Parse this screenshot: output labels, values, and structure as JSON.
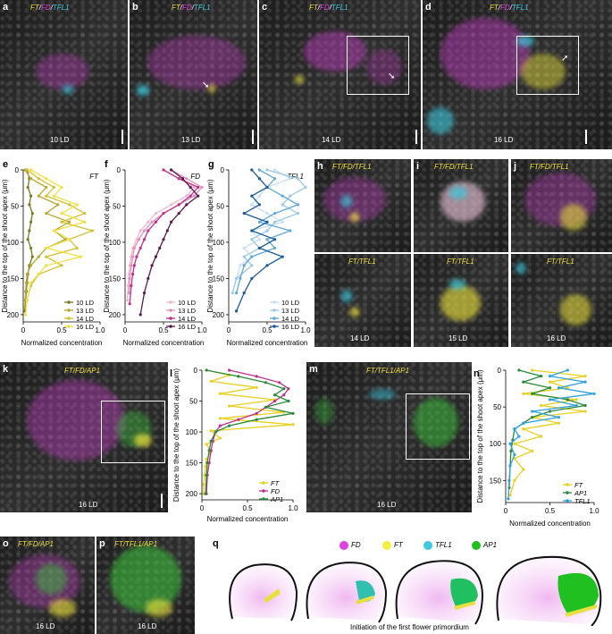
{
  "panels_top": [
    {
      "letter": "a",
      "title": [
        "FT",
        "FD",
        "TFL1"
      ],
      "ld": "10 LD"
    },
    {
      "letter": "b",
      "title": [
        "FT",
        "FD",
        "TFL1"
      ],
      "ld": "13 LD"
    },
    {
      "letter": "c",
      "title": [
        "FT",
        "FD",
        "TFL1"
      ],
      "ld": "14 LD"
    },
    {
      "letter": "d",
      "title": [
        "FT",
        "FD",
        "TFL1"
      ],
      "ld": "16 LD"
    }
  ],
  "panels_h": {
    "h": {
      "letter": "h",
      "title": "FT/FD/TFL1",
      "title2": "FT/TFL1",
      "ld": "14 LD"
    },
    "i": {
      "letter": "i",
      "title": "FT/FD/TFL1",
      "title2": "FT/TFL1",
      "ld": "15 LD"
    },
    "j": {
      "letter": "j",
      "title": "FT/FD/TFL1",
      "title2": "FT/TFL1",
      "ld": "16 LD"
    }
  },
  "panel_k": {
    "letter": "k",
    "title": "FT/FD/AP1",
    "ld": "16 LD"
  },
  "panel_m": {
    "letter": "m",
    "title": "FT/TFL1/AP1",
    "ld": "16 LD"
  },
  "panel_o": {
    "letter": "o",
    "title": "FT/FD/AP1",
    "ld": "16 LD"
  },
  "panel_p": {
    "letter": "p",
    "title": "FT/TFL1/AP1",
    "ld": "16 LD"
  },
  "panel_q": {
    "letter": "q",
    "legend": [
      {
        "label": "FD",
        "color": "#e040e0"
      },
      {
        "label": "FT",
        "color": "#f0f040"
      },
      {
        "label": "TFL1",
        "color": "#40c8e0"
      },
      {
        "label": "AP1",
        "color": "#20c020"
      }
    ],
    "caption": "Initiation of the first flower primordium"
  },
  "colors": {
    "FT": "#e8d020",
    "FD": "#c0308a",
    "AP1": "#2a8a3a",
    "TFL1": "#30a0e0",
    "LD10": "#7a7a20",
    "LD13": "#c8b830",
    "LD14": "#d4c030",
    "LD16": "#f0e040"
  },
  "axis_texts": {
    "ylabel": "Distance to the top of the shoot apex (μm)",
    "xlabel": "Normalized concentration"
  },
  "chart_data": [
    {
      "id": "e",
      "type": "line",
      "title": "FT",
      "xlabel": "Normalized concentration",
      "ylabel": "Distance to the top of the shoot apex (μm)",
      "xlim": [
        0,
        1
      ],
      "ylim": [
        0,
        210
      ],
      "y_inverted": true,
      "series": [
        {
          "name": "10 LD",
          "color": "#7a7a20",
          "x": [
            0.05,
            0.08,
            0.06,
            0.1,
            0.08,
            0.12,
            0.1,
            0.08,
            0.06,
            0.1,
            0.12,
            0.08,
            0.06,
            0.05,
            0.04,
            0.03,
            0.02
          ],
          "y": [
            0,
            12,
            24,
            36,
            48,
            60,
            72,
            84,
            96,
            108,
            120,
            132,
            144,
            156,
            168,
            180,
            195
          ]
        },
        {
          "name": "13 LD",
          "color": "#b8a830",
          "x": [
            0.02,
            0.1,
            0.3,
            0.2,
            0.45,
            0.3,
            0.6,
            0.4,
            0.55,
            0.3,
            0.2,
            0.1,
            0.05,
            0.04,
            0.03,
            0.02
          ],
          "y": [
            0,
            12,
            24,
            36,
            48,
            60,
            72,
            84,
            96,
            108,
            120,
            132,
            144,
            156,
            168,
            190
          ]
        },
        {
          "name": "14 LD",
          "color": "#d4c030",
          "x": [
            0.05,
            0.2,
            0.4,
            0.3,
            0.6,
            0.8,
            0.5,
            0.9,
            0.6,
            0.7,
            0.3,
            0.5,
            0.2,
            0.1,
            0.05
          ],
          "y": [
            0,
            12,
            24,
            36,
            48,
            60,
            72,
            84,
            96,
            108,
            120,
            132,
            144,
            160,
            180
          ]
        },
        {
          "name": "16 LD",
          "color": "#f0e040",
          "x": [
            0.1,
            0.3,
            0.5,
            0.4,
            0.7,
            0.5,
            0.8,
            0.4,
            0.6,
            0.3,
            0.75,
            0.3,
            0.2,
            0.1,
            0.05,
            0.03
          ],
          "y": [
            0,
            12,
            24,
            36,
            48,
            60,
            72,
            84,
            96,
            108,
            120,
            132,
            144,
            156,
            180,
            200
          ]
        }
      ]
    },
    {
      "id": "f",
      "type": "line",
      "title": "FD",
      "xlabel": "Normalized concentration",
      "ylabel": "Distance to the top of the shoot apex (μm)",
      "xlim": [
        0,
        1
      ],
      "ylim": [
        0,
        210
      ],
      "y_inverted": true,
      "series": [
        {
          "name": "10 LD",
          "color": "#f0b8cc",
          "x": [
            0.5,
            0.7,
            0.9,
            0.8,
            0.6,
            0.4,
            0.3,
            0.2,
            0.15,
            0.1,
            0.08,
            0.06,
            0.05,
            0.04,
            0.03
          ],
          "y": [
            0,
            12,
            24,
            36,
            48,
            60,
            72,
            84,
            96,
            108,
            120,
            132,
            144,
            160,
            180
          ]
        },
        {
          "name": "13 LD",
          "color": "#e090b8",
          "x": [
            0.6,
            0.8,
            1.0,
            0.9,
            0.7,
            0.5,
            0.35,
            0.25,
            0.18,
            0.12,
            0.1,
            0.08,
            0.06,
            0.05
          ],
          "y": [
            0,
            12,
            24,
            36,
            48,
            60,
            72,
            84,
            96,
            108,
            120,
            132,
            150,
            170
          ]
        },
        {
          "name": "14 LD",
          "color": "#c0308a",
          "x": [
            0.5,
            0.7,
            0.95,
            0.85,
            0.7,
            0.5,
            0.4,
            0.3,
            0.25,
            0.2,
            0.15,
            0.12,
            0.1,
            0.08,
            0.06
          ],
          "y": [
            0,
            12,
            24,
            36,
            48,
            60,
            72,
            84,
            96,
            108,
            120,
            132,
            144,
            160,
            185
          ]
        },
        {
          "name": "16 LD",
          "color": "#5a1a50",
          "x": [
            0.6,
            0.75,
            0.85,
            0.95,
            0.8,
            0.7,
            0.6,
            0.55,
            0.5,
            0.45,
            0.4,
            0.35,
            0.3,
            0.25,
            0.2
          ],
          "y": [
            0,
            12,
            24,
            36,
            48,
            60,
            72,
            84,
            96,
            108,
            120,
            132,
            150,
            170,
            200
          ]
        }
      ]
    },
    {
      "id": "g",
      "type": "line",
      "title": "TFL1",
      "xlabel": "Normalized concentration",
      "ylabel": "Distance to the top of the shoot apex (μm)",
      "xlim": [
        0,
        1
      ],
      "ylim": [
        0,
        210
      ],
      "y_inverted": true,
      "series": [
        {
          "name": "10 LD",
          "color": "#c8dff0",
          "x": [
            0.6,
            0.8,
            0.5,
            0.4,
            0.3,
            0.5,
            0.7,
            0.3,
            0.4,
            0.2,
            0.3,
            0.15,
            0.1,
            0.05
          ],
          "y": [
            0,
            12,
            24,
            36,
            48,
            60,
            72,
            84,
            96,
            108,
            120,
            132,
            150,
            170
          ]
        },
        {
          "name": "13 LD",
          "color": "#9cc8e8",
          "x": [
            0.5,
            0.9,
            1.0,
            0.8,
            0.7,
            0.9,
            0.6,
            0.5,
            0.3,
            0.4,
            0.2,
            0.3,
            0.1,
            0.05
          ],
          "y": [
            0,
            12,
            24,
            36,
            48,
            60,
            72,
            84,
            96,
            108,
            120,
            132,
            150,
            170
          ]
        },
        {
          "name": "14 LD",
          "color": "#60a8d8",
          "x": [
            0.4,
            0.6,
            0.5,
            0.7,
            0.9,
            0.6,
            0.4,
            0.8,
            0.5,
            0.6,
            0.3,
            0.2,
            0.15,
            0.1
          ],
          "y": [
            0,
            12,
            24,
            36,
            48,
            60,
            72,
            84,
            96,
            108,
            120,
            132,
            150,
            170
          ]
        },
        {
          "name": "16 LD",
          "color": "#1a5a98",
          "x": [
            0.3,
            0.4,
            0.5,
            0.3,
            0.4,
            0.2,
            0.5,
            0.3,
            0.6,
            0.4,
            0.7,
            0.5,
            0.3,
            0.2,
            0.1
          ],
          "y": [
            0,
            12,
            24,
            36,
            48,
            60,
            72,
            84,
            96,
            108,
            120,
            132,
            150,
            170,
            195
          ]
        }
      ]
    },
    {
      "id": "l",
      "type": "line",
      "title": "",
      "xlabel": "Normalized concentration",
      "ylabel": "Distance to the top of the shoot apex (μm)",
      "xlim": [
        0,
        1
      ],
      "ylim": [
        0,
        210
      ],
      "y_inverted": true,
      "series": [
        {
          "name": "FT",
          "color": "#e8d020",
          "x": [
            0.05,
            0.3,
            0.1,
            0.6,
            0.2,
            0.8,
            0.3,
            0.9,
            0.2,
            1.0,
            0.1,
            0.2,
            0.05,
            0.1,
            0.05,
            0.04,
            0.03,
            0.02,
            0.02
          ],
          "y": [
            0,
            8,
            18,
            28,
            38,
            48,
            58,
            68,
            78,
            88,
            98,
            110,
            120,
            132,
            144,
            156,
            170,
            185,
            200
          ]
        },
        {
          "name": "FD",
          "color": "#c0308a",
          "x": [
            0.3,
            0.6,
            0.85,
            0.95,
            0.9,
            0.8,
            0.7,
            0.6,
            0.4,
            0.2,
            0.15,
            0.12,
            0.1,
            0.08,
            0.06,
            0.05
          ],
          "y": [
            0,
            10,
            20,
            30,
            40,
            50,
            60,
            70,
            80,
            90,
            100,
            115,
            130,
            150,
            170,
            200
          ]
        },
        {
          "name": "AP1",
          "color": "#2a8a3a",
          "x": [
            0.05,
            0.4,
            0.7,
            0.9,
            0.8,
            0.95,
            0.7,
            1.0,
            0.6,
            0.3,
            0.15,
            0.1,
            0.08,
            0.06,
            0.05,
            0.04
          ],
          "y": [
            0,
            10,
            20,
            30,
            40,
            50,
            60,
            70,
            80,
            90,
            100,
            115,
            130,
            150,
            170,
            200
          ]
        }
      ]
    },
    {
      "id": "n",
      "type": "line",
      "title": "",
      "xlabel": "Normalized concentration",
      "ylabel": "Distance to the top of the shoot apex (μm)",
      "xlim": [
        0,
        1
      ],
      "ylim": [
        0,
        180
      ],
      "y_inverted": true,
      "series": [
        {
          "name": "FT",
          "color": "#e8d020",
          "x": [
            0.3,
            0.9,
            0.5,
            0.7,
            0.2,
            0.8,
            0.4,
            0.9,
            0.3,
            0.6,
            0.2,
            0.4,
            0.1,
            0.3,
            0.1,
            0.2,
            0.1,
            0.05
          ],
          "y": [
            0,
            8,
            16,
            24,
            32,
            40,
            48,
            56,
            64,
            72,
            80,
            90,
            100,
            110,
            120,
            135,
            150,
            170
          ]
        },
        {
          "name": "AP1",
          "color": "#2a8a3a",
          "x": [
            0.15,
            0.4,
            0.2,
            0.5,
            0.3,
            0.7,
            0.9,
            0.5,
            0.3,
            0.2,
            0.1,
            0.08,
            0.06,
            0.05,
            0.04
          ],
          "y": [
            0,
            8,
            16,
            24,
            32,
            40,
            48,
            56,
            64,
            72,
            80,
            95,
            110,
            130,
            160
          ]
        },
        {
          "name": "TFL1",
          "color": "#30a0e0",
          "x": [
            0.7,
            0.5,
            0.9,
            0.6,
            1.0,
            0.5,
            0.8,
            0.3,
            0.6,
            0.2,
            0.1,
            0.15,
            0.05,
            0.1,
            0.05,
            0.04,
            0.03
          ],
          "y": [
            0,
            8,
            16,
            24,
            32,
            40,
            48,
            56,
            64,
            72,
            80,
            90,
            100,
            115,
            130,
            150,
            175
          ]
        }
      ]
    }
  ]
}
